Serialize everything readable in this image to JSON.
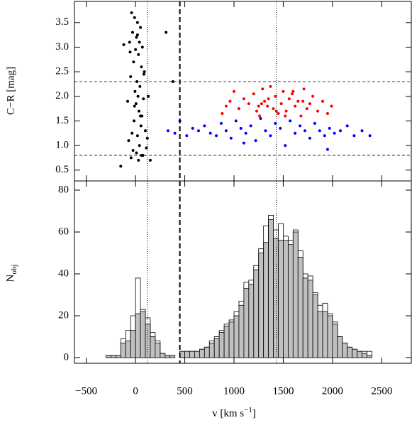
{
  "chart_data": [
    {
      "type": "scatter",
      "ylabel": "C−R [mag]",
      "xlim": [
        -620,
        2800
      ],
      "ylim": [
        0.28,
        3.93
      ],
      "yticks": [
        0.5,
        {
          "value": 1,
          "label": "1.0"
        },
        1.5,
        {
          "value": 2,
          "label": "2.0"
        },
        2.5,
        {
          "value": 3,
          "label": "3.0"
        },
        3.5
      ],
      "hlines": [
        {
          "value": 2.3,
          "style": "dashed"
        },
        {
          "value": 0.8,
          "style": "dashed"
        }
      ],
      "vlines": [
        {
          "value": 450,
          "style": "thick-dashed"
        },
        {
          "value": 120,
          "style": "dotted"
        },
        {
          "value": 1430,
          "style": "dotted"
        }
      ],
      "series": [
        {
          "color": "#000000",
          "x": [
            -40,
            -10,
            20,
            50,
            -30,
            10,
            40,
            70,
            -60,
            0,
            30,
            -20,
            60,
            90,
            -50,
            15,
            45,
            -5,
            25,
            80,
            -80,
            5,
            35,
            65,
            -15,
            55,
            100,
            -35,
            20,
            -70,
            40,
            110,
            -25,
            10,
            75,
            -45,
            30,
            130,
            -120,
            150,
            310,
            380,
            -150,
            50,
            -10,
            85,
            -55,
            20,
            120,
            60
          ],
          "y": [
            3.7,
            3.6,
            3.5,
            3.4,
            3.3,
            3.2,
            3.1,
            3.0,
            3.1,
            2.95,
            2.85,
            2.7,
            2.6,
            2.5,
            2.4,
            2.3,
            2.2,
            2.1,
            2.0,
            1.95,
            1.9,
            1.85,
            1.7,
            1.6,
            1.5,
            1.4,
            1.3,
            1.25,
            1.2,
            1.1,
            1.0,
            0.95,
            0.9,
            0.85,
            0.8,
            0.75,
            0.7,
            2.0,
            3.05,
            0.7,
            3.3,
            2.3,
            0.58,
            1.6,
            1.8,
            2.45,
            2.9,
            3.25,
            1.15,
            0.8
          ]
        },
        {
          "color": "#ff0000",
          "x": [
            880,
            920,
            960,
            1000,
            1050,
            1100,
            1150,
            1200,
            1230,
            1260,
            1290,
            1310,
            1340,
            1370,
            1400,
            1420,
            1450,
            1480,
            1500,
            1530,
            1560,
            1590,
            1620,
            1650,
            1680,
            1710,
            1740,
            1770,
            1800,
            1850,
            1900,
            1950,
            1990,
            1280,
            1350,
            1430,
            1520,
            1600,
            1700,
            1250
          ],
          "y": [
            1.65,
            1.8,
            1.9,
            2.1,
            1.75,
            1.95,
            1.85,
            2.05,
            1.7,
            1.6,
            2.15,
            1.9,
            1.8,
            2.2,
            1.75,
            2.0,
            1.65,
            1.85,
            2.1,
            1.7,
            1.95,
            2.05,
            1.8,
            1.9,
            1.6,
            2.15,
            1.75,
            1.85,
            2.0,
            1.7,
            1.9,
            1.65,
            1.8,
            1.85,
            1.95,
            1.7,
            1.6,
            2.1,
            1.9,
            1.8
          ]
        },
        {
          "color": "#0000ff",
          "x": [
            330,
            400,
            450,
            520,
            580,
            640,
            700,
            760,
            820,
            870,
            920,
            970,
            1020,
            1070,
            1120,
            1170,
            1220,
            1270,
            1320,
            1370,
            1420,
            1470,
            1520,
            1570,
            1620,
            1670,
            1720,
            1770,
            1820,
            1870,
            1920,
            1970,
            2020,
            2080,
            2150,
            2220,
            2300,
            2380,
            1950,
            1100
          ],
          "y": [
            1.3,
            1.25,
            1.5,
            1.2,
            1.35,
            1.3,
            1.4,
            1.25,
            1.2,
            1.45,
            1.3,
            1.15,
            1.5,
            1.35,
            1.25,
            1.4,
            1.1,
            1.55,
            1.3,
            1.2,
            1.45,
            1.35,
            1.0,
            1.5,
            1.25,
            1.4,
            1.3,
            1.15,
            1.45,
            1.3,
            1.2,
            1.35,
            1.25,
            1.3,
            1.4,
            1.2,
            1.3,
            1.2,
            0.92,
            1.05
          ]
        }
      ]
    },
    {
      "type": "histogram",
      "ylabel": [
        "N",
        "obj"
      ],
      "xlabel": [
        "v [km s",
        "−1",
        "]"
      ],
      "xlim": [
        -620,
        2800
      ],
      "ylim": [
        -2.7,
        84.4
      ],
      "xticks": [
        {
          "value": -500,
          "label": "−500"
        },
        0,
        500,
        1000,
        1500,
        2000,
        2500
      ],
      "yticks": [
        0,
        20,
        40,
        60,
        80
      ],
      "vlines": [
        {
          "value": 450,
          "style": "thick-dashed"
        },
        {
          "value": 120,
          "style": "dotted"
        },
        {
          "value": 1430,
          "style": "dotted"
        }
      ],
      "bins": [
        -300,
        -250,
        -200,
        -150,
        -100,
        -50,
        0,
        50,
        100,
        150,
        200,
        250,
        300,
        350,
        400,
        450,
        500,
        550,
        600,
        650,
        700,
        750,
        800,
        850,
        900,
        950,
        1000,
        1050,
        1100,
        1150,
        1200,
        1250,
        1300,
        1350,
        1400,
        1450,
        1500,
        1550,
        1600,
        1650,
        1700,
        1750,
        1800,
        1850,
        1900,
        1950,
        2000,
        2050,
        2100,
        2150,
        2200,
        2250,
        2300,
        2350,
        2400
      ],
      "series": [
        {
          "color": "#ffffff",
          "values": [
            1,
            1,
            1,
            9,
            13,
            20,
            38,
            23,
            19,
            12,
            8,
            2,
            1,
            1,
            0,
            3,
            3,
            3,
            3,
            4,
            5,
            8,
            10,
            13,
            16,
            18,
            22,
            27,
            36,
            37,
            44,
            52,
            63,
            68,
            61,
            64,
            58,
            56,
            61,
            51,
            40,
            39,
            31,
            25,
            26,
            21,
            17,
            10,
            7,
            5,
            4,
            3,
            3,
            3
          ]
        },
        {
          "color": "#c0c0c0",
          "values": [
            1,
            1,
            1,
            7,
            8,
            13,
            21,
            22,
            16,
            10,
            7,
            2,
            1,
            1,
            0,
            3,
            3,
            3,
            3,
            4,
            5,
            7,
            9,
            12,
            15,
            17,
            20,
            25,
            33,
            35,
            42,
            50,
            55,
            66,
            57,
            56,
            56,
            54,
            60,
            48,
            38,
            37,
            30,
            22,
            22,
            20,
            16,
            10,
            7,
            5,
            4,
            3,
            2,
            1
          ]
        }
      ]
    }
  ]
}
